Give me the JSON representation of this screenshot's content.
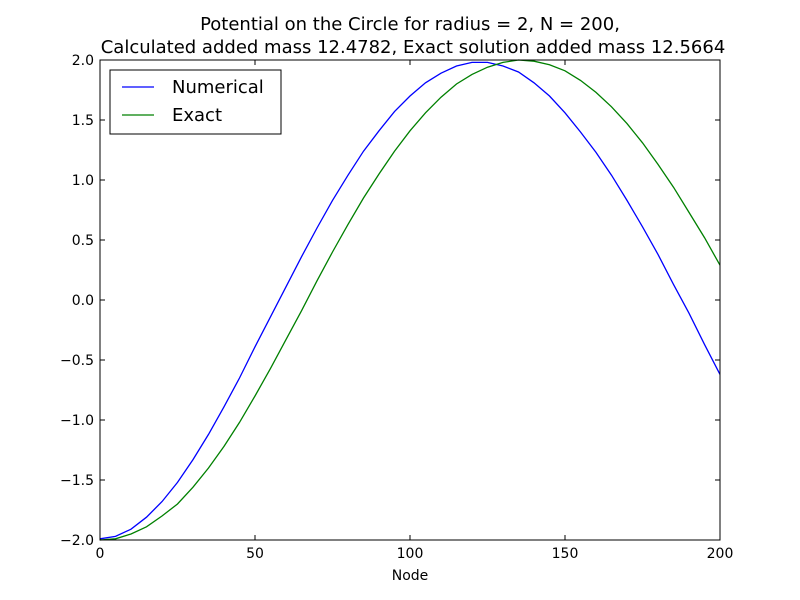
{
  "chart_data": {
    "type": "line",
    "title_lines": [
      "Potential on the Circle for radius = 2, N = 200,",
      "Calculated added mass 12.4782, Exact solution added mass 12.5664"
    ],
    "xlabel": "Node",
    "ylabel": "",
    "xlim": [
      0,
      200
    ],
    "ylim": [
      -2.0,
      2.0
    ],
    "xticks": [
      0,
      50,
      100,
      150,
      200
    ],
    "xtick_labels": [
      "0",
      "50",
      "100",
      "150",
      "200"
    ],
    "yticks": [
      -2.0,
      -1.5,
      -1.0,
      -0.5,
      0.0,
      0.5,
      1.0,
      1.5,
      2.0
    ],
    "ytick_labels": [
      "−2.0",
      "−1.5",
      "−1.0",
      "−0.5",
      "0.0",
      "0.5",
      "1.0",
      "1.5",
      "2.0"
    ],
    "grid": false,
    "legend_position": "top-left",
    "series": [
      {
        "name": "Numerical",
        "color": "#0000ff",
        "x": [
          0,
          5,
          10,
          15,
          20,
          25,
          30,
          35,
          40,
          45,
          50,
          55,
          60,
          65,
          70,
          75,
          80,
          85,
          90,
          95,
          100,
          105,
          110,
          115,
          120,
          125,
          130,
          135,
          140,
          145,
          150,
          155,
          160,
          165,
          170,
          175,
          180,
          185,
          190,
          195,
          200
        ],
        "y": [
          -1.99,
          -1.97,
          -1.91,
          -1.81,
          -1.68,
          -1.52,
          -1.33,
          -1.12,
          -0.89,
          -0.65,
          -0.39,
          -0.14,
          0.11,
          0.36,
          0.6,
          0.83,
          1.04,
          1.24,
          1.41,
          1.57,
          1.7,
          1.81,
          1.89,
          1.95,
          1.98,
          1.98,
          1.95,
          1.9,
          1.81,
          1.7,
          1.56,
          1.4,
          1.23,
          1.04,
          0.83,
          0.61,
          0.38,
          0.13,
          -0.11,
          -0.37,
          -0.62
        ]
      },
      {
        "name": "Exact",
        "color": "#008000",
        "x": [
          0,
          5,
          10,
          15,
          20,
          25,
          30,
          35,
          40,
          45,
          50,
          55,
          60,
          65,
          70,
          75,
          80,
          85,
          90,
          95,
          100,
          105,
          110,
          115,
          120,
          125,
          130,
          135,
          140,
          145,
          150,
          155,
          160,
          165,
          170,
          175,
          180,
          185,
          190,
          195,
          200
        ],
        "y": [
          -2.0,
          -1.99,
          -1.95,
          -1.89,
          -1.8,
          -1.7,
          -1.56,
          -1.4,
          -1.22,
          -1.02,
          -0.8,
          -0.57,
          -0.33,
          -0.09,
          0.16,
          0.4,
          0.63,
          0.85,
          1.05,
          1.24,
          1.41,
          1.56,
          1.69,
          1.8,
          1.88,
          1.94,
          1.98,
          2.0,
          1.99,
          1.96,
          1.91,
          1.83,
          1.73,
          1.61,
          1.47,
          1.31,
          1.13,
          0.94,
          0.73,
          0.52,
          0.29
        ]
      }
    ]
  }
}
